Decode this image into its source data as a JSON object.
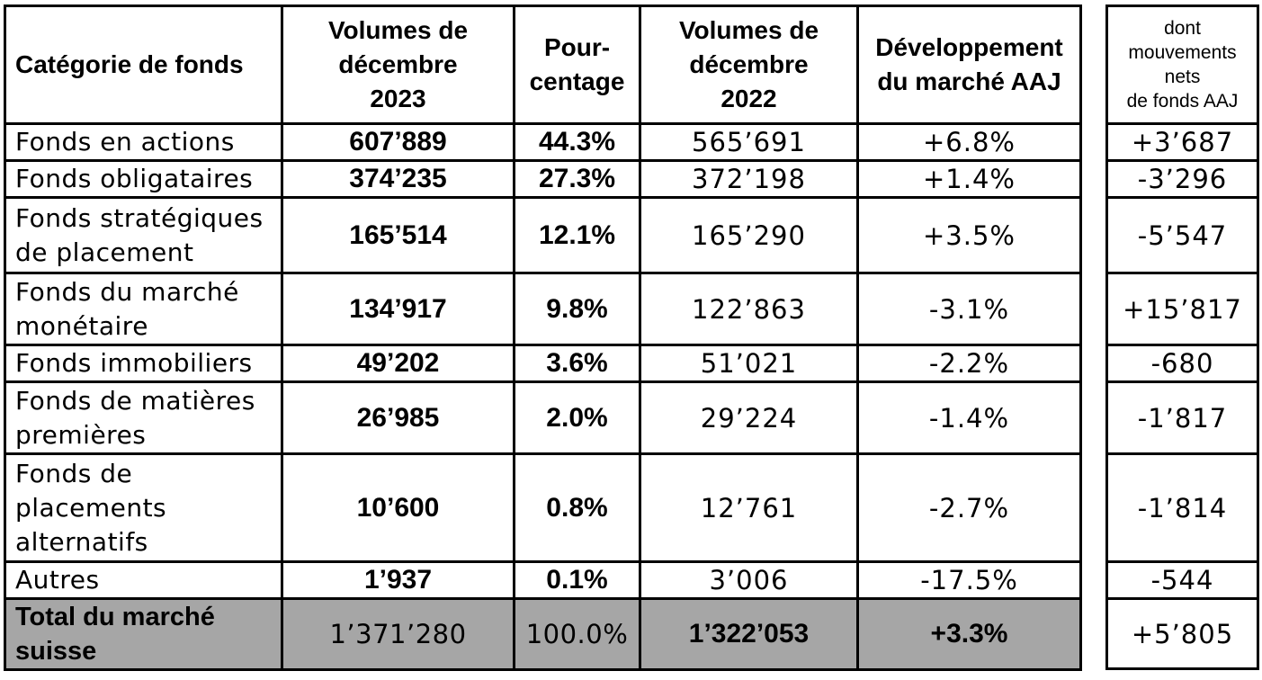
{
  "headers": {
    "category": "Catégorie de fonds",
    "volumes_2023": "Volumes de\ndécembre\n2023",
    "percentage": "Pour-\ncentage",
    "volumes_2022": "Volumes de\ndécembre\n2022",
    "development": "Développement\ndu marché AAJ",
    "net_flows": "dont\nmouvements\nnets\nde fonds AAJ"
  },
  "rows": [
    {
      "category": "Fonds en actions",
      "vol_2023": "607’889",
      "pct": "44.3%",
      "vol_2022": "565’691",
      "dev": "+6.8%",
      "net": "+3’687"
    },
    {
      "category": "Fonds obligataires",
      "vol_2023": "374’235",
      "pct": "27.3%",
      "vol_2022": "372’198",
      "dev": "+1.4%",
      "net": "-3’296"
    },
    {
      "category": "Fonds stratégiques\nde placement",
      "vol_2023": "165’514",
      "pct": "12.1%",
      "vol_2022": "165’290",
      "dev": "+3.5%",
      "net": "-5’547"
    },
    {
      "category": "Fonds du marché\nmonétaire",
      "vol_2023": "134’917",
      "pct": "9.8%",
      "vol_2022": "122’863",
      "dev": "-3.1%",
      "net": "+15’817"
    },
    {
      "category": "Fonds immobiliers",
      "vol_2023": "49’202",
      "pct": "3.6%",
      "vol_2022": "51’021",
      "dev": "-2.2%",
      "net": "-680"
    },
    {
      "category": "Fonds de matières\npremières",
      "vol_2023": "26’985",
      "pct": "2.0%",
      "vol_2022": "29’224",
      "dev": "-1.4%",
      "net": "-1’817"
    },
    {
      "category": "Fonds de\nplacements\nalternatifs",
      "vol_2023": "10’600",
      "pct": "0.8%",
      "vol_2022": "12’761",
      "dev": "-2.7%",
      "net": "-1’814"
    },
    {
      "category": "Autres",
      "vol_2023": "1’937",
      "pct": "0.1%",
      "vol_2022": "3’006",
      "dev": "-17.5%",
      "net": "-544"
    }
  ],
  "total": {
    "category": "Total du marché\nsuisse",
    "vol_2023": "1’371’280",
    "pct": "100.0%",
    "vol_2022": "1’322’053",
    "dev": "+3.3%",
    "net": "+5’805"
  },
  "colors": {
    "total_bg": "#a6a6a6",
    "border": "#000000"
  }
}
